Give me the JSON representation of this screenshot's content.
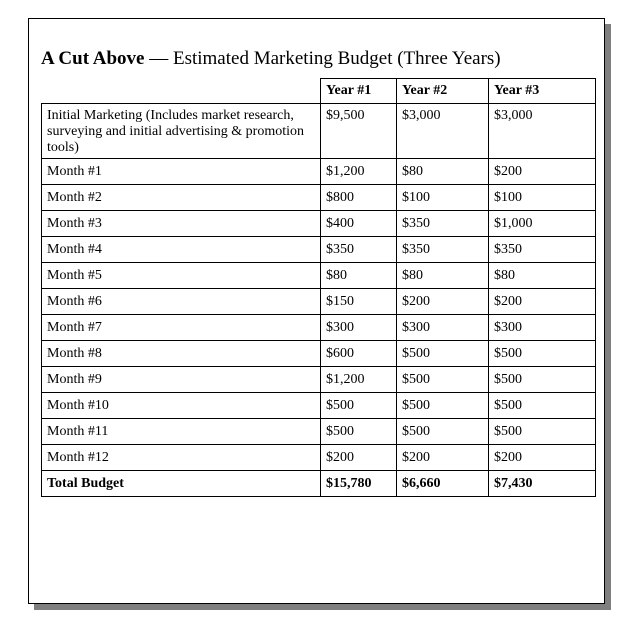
{
  "title": {
    "brand": "A Cut Above",
    "rest": " — Estimated Marketing Budget (Three Years)"
  },
  "columns": [
    "Year #1",
    "Year #2",
    "Year #3"
  ],
  "initial": {
    "label": "Initial Marketing (Includes market research, surveying and initial advertising & promotion tools)",
    "values": [
      "$9,500",
      "$3,000",
      "$3,000"
    ]
  },
  "months": [
    {
      "label": "Month #1",
      "values": [
        "$1,200",
        "$80",
        "$200"
      ]
    },
    {
      "label": "Month #2",
      "values": [
        "$800",
        "$100",
        "$100"
      ]
    },
    {
      "label": "Month #3",
      "values": [
        "$400",
        "$350",
        "$1,000"
      ]
    },
    {
      "label": "Month #4",
      "values": [
        "$350",
        "$350",
        "$350"
      ]
    },
    {
      "label": "Month #5",
      "values": [
        "$80",
        "$80",
        "$80"
      ]
    },
    {
      "label": "Month #6",
      "values": [
        "$150",
        "$200",
        "$200"
      ]
    },
    {
      "label": "Month #7",
      "values": [
        "$300",
        "$300",
        "$300"
      ]
    },
    {
      "label": "Month #8",
      "values": [
        "$600",
        "$500",
        "$500"
      ]
    },
    {
      "label": "Month #9",
      "values": [
        "$1,200",
        "$500",
        "$500"
      ]
    },
    {
      "label": "Month #10",
      "values": [
        "$500",
        "$500",
        "$500"
      ]
    },
    {
      "label": "Month #11",
      "values": [
        "$500",
        "$500",
        "$500"
      ]
    },
    {
      "label": "Month #12",
      "values": [
        "$200",
        "$200",
        "$200"
      ]
    }
  ],
  "total": {
    "label": "Total Budget",
    "values": [
      "$15,780",
      "$6,660",
      "$7,430"
    ]
  }
}
